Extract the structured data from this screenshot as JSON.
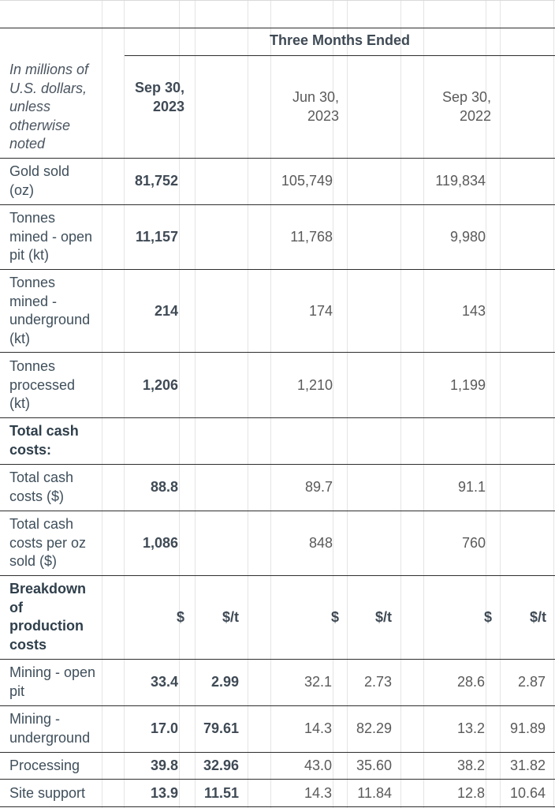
{
  "header": {
    "section_title": "Three Months Ended",
    "units_note": "In millions of U.S. dollars, unless otherwise noted",
    "periods": [
      "Sep 30, 2023",
      "Jun 30, 2023",
      "Sep 30, 2022"
    ],
    "currency_unit": "$",
    "per_tonne_unit": "$/t"
  },
  "rows": [
    {
      "label": "Gold sold (oz)",
      "values": [
        "81,752",
        "105,749",
        "119,834"
      ]
    },
    {
      "label": "Tonnes mined - open pit (kt)",
      "values": [
        "11,157",
        "11,768",
        "9,980"
      ]
    },
    {
      "label": "Tonnes mined - underground (kt)",
      "values": [
        "214",
        "174",
        "143"
      ]
    },
    {
      "label": "Tonnes processed (kt)",
      "values": [
        "1,206",
        "1,210",
        "1,199"
      ]
    },
    {
      "label": "Total cash costs:",
      "values": []
    },
    {
      "label": "Total cash costs ($)",
      "values": [
        "88.8",
        "89.7",
        "91.1"
      ]
    },
    {
      "label": "Total cash costs per oz sold ($)",
      "values": [
        "1,086",
        "848",
        "760"
      ]
    },
    {
      "label": "Breakdown of production costs",
      "values": []
    }
  ],
  "cost_rows": [
    {
      "label": "Mining - open pit",
      "values": [
        "33.4",
        "2.99",
        "32.1",
        "2.73",
        "28.6",
        "2.87"
      ]
    },
    {
      "label": "Mining - underground",
      "values": [
        "17.0",
        "79.61",
        "14.3",
        "82.29",
        "13.2",
        "91.89"
      ]
    },
    {
      "label": "Processing",
      "values": [
        "39.8",
        "32.96",
        "43.0",
        "35.60",
        "38.2",
        "31.82"
      ]
    },
    {
      "label": "Site support",
      "values": [
        "13.9",
        "11.51",
        "14.3",
        "11.84",
        "12.8",
        "10.64"
      ]
    }
  ]
}
